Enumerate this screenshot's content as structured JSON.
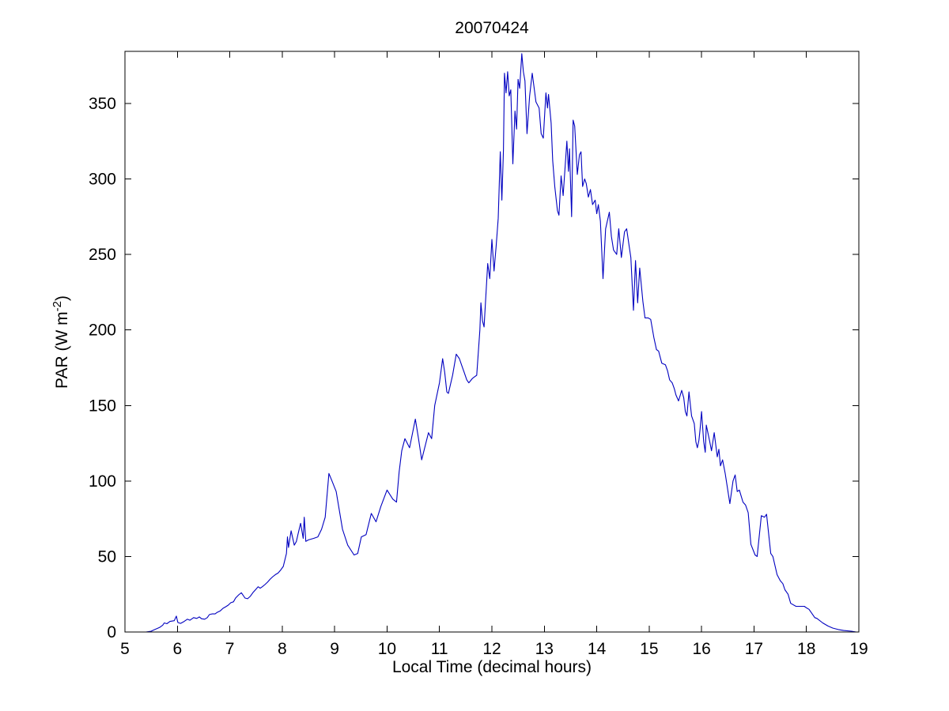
{
  "title": "20070424",
  "chart_data": {
    "type": "line",
    "title": "20070424",
    "xlabel": "Local Time (decimal hours)",
    "ylabel": "PAR (W m-2)",
    "ylabel_parts": {
      "prefix": "PAR (W m",
      "superscript": "-2",
      "suffix": ")"
    },
    "legend": "none",
    "grid": false,
    "xlim": [
      5,
      19
    ],
    "ylim": [
      0,
      384.5
    ],
    "xticks": [
      5,
      6,
      7,
      8,
      9,
      10,
      11,
      12,
      13,
      14,
      15,
      16,
      17,
      18,
      19
    ],
    "yticks": [
      0,
      50,
      100,
      150,
      200,
      250,
      300,
      350
    ],
    "line_color": "#0000C0",
    "axis_color": "#000000",
    "background": "#FFFFFF",
    "x": [
      5.4,
      5.5,
      5.56,
      5.66,
      5.72,
      5.75,
      5.8,
      5.86,
      5.94,
      5.98,
      6.01,
      6.06,
      6.13,
      6.19,
      6.24,
      6.31,
      6.37,
      6.42,
      6.46,
      6.52,
      6.57,
      6.61,
      6.66,
      6.72,
      6.76,
      6.82,
      6.87,
      6.92,
      6.97,
      7.02,
      7.07,
      7.11,
      7.17,
      7.22,
      7.29,
      7.34,
      7.39,
      7.44,
      7.49,
      7.54,
      7.58,
      7.62,
      7.67,
      7.72,
      7.77,
      7.82,
      7.87,
      7.92,
      7.97,
      8.02,
      8.08,
      8.1,
      8.12,
      8.17,
      8.23,
      8.27,
      8.3,
      8.35,
      8.4,
      8.42,
      8.45,
      8.5,
      8.6,
      8.68,
      8.75,
      8.82,
      8.89,
      8.95,
      9.03,
      9.15,
      9.25,
      9.37,
      9.44,
      9.51,
      9.6,
      9.7,
      9.79,
      9.88,
      10.0,
      10.11,
      10.18,
      10.23,
      10.28,
      10.34,
      10.43,
      10.54,
      10.6,
      10.66,
      10.79,
      10.85,
      10.91,
      11.0,
      11.06,
      11.1,
      11.14,
      11.17,
      11.25,
      11.32,
      11.38,
      11.43,
      11.47,
      11.52,
      11.56,
      11.63,
      11.67,
      11.71,
      11.77,
      11.79,
      11.82,
      11.85,
      11.92,
      11.96,
      12.0,
      12.04,
      12.08,
      12.12,
      12.16,
      12.19,
      12.22,
      12.24,
      12.27,
      12.3,
      12.33,
      12.36,
      12.4,
      12.44,
      12.47,
      12.5,
      12.53,
      12.57,
      12.6,
      12.63,
      12.67,
      12.72,
      12.77,
      12.84,
      12.9,
      12.94,
      12.98,
      13.03,
      13.06,
      13.08,
      13.13,
      13.16,
      13.2,
      13.25,
      13.28,
      13.32,
      13.36,
      13.43,
      13.46,
      13.48,
      13.52,
      13.55,
      13.58,
      13.63,
      13.67,
      13.7,
      13.73,
      13.77,
      13.8,
      13.84,
      13.88,
      13.92,
      13.97,
      14.0,
      14.03,
      14.07,
      14.12,
      14.17,
      14.24,
      14.28,
      14.32,
      14.38,
      14.42,
      14.47,
      14.53,
      14.57,
      14.62,
      14.65,
      14.7,
      14.74,
      14.78,
      14.82,
      14.88,
      14.92,
      14.98,
      15.03,
      15.09,
      15.14,
      15.18,
      15.24,
      15.31,
      15.35,
      15.39,
      15.44,
      15.48,
      15.51,
      15.56,
      15.62,
      15.66,
      15.69,
      15.72,
      15.76,
      15.81,
      15.86,
      15.89,
      15.92,
      15.95,
      15.97,
      16.0,
      16.04,
      16.07,
      16.09,
      16.15,
      16.19,
      16.24,
      16.3,
      16.33,
      16.36,
      16.4,
      16.45,
      16.54,
      16.6,
      16.64,
      16.68,
      16.72,
      16.79,
      16.84,
      16.89,
      16.94,
      17.02,
      17.06,
      17.14,
      17.2,
      17.24,
      17.32,
      17.36,
      17.44,
      17.5,
      17.55,
      17.59,
      17.65,
      17.7,
      17.8,
      17.9,
      17.96,
      18.0,
      18.05,
      18.11,
      18.16,
      18.2,
      18.31,
      18.41,
      18.5,
      18.61,
      18.71,
      18.86,
      18.95
    ],
    "y": [
      0,
      0.5,
      1.5,
      3,
      4.5,
      6,
      5.5,
      7,
      7.5,
      10.5,
      6.3,
      5.7,
      7,
      8.5,
      7.8,
      9.5,
      9,
      10,
      8.8,
      8.5,
      9.5,
      11.5,
      12,
      12,
      13,
      14,
      15.7,
      16.7,
      17.8,
      19.4,
      20,
      22.5,
      24.6,
      26,
      22.5,
      22,
      23.6,
      26,
      28,
      30,
      29,
      30,
      31.4,
      33,
      35,
      36.6,
      38,
      39,
      41,
      43.4,
      52,
      63,
      56,
      67,
      57.5,
      60,
      64.5,
      72,
      62,
      76,
      60,
      61,
      62,
      63,
      68,
      76,
      105,
      100,
      93,
      68,
      57.5,
      51,
      52,
      63,
      64.5,
      78.5,
      73,
      83,
      94,
      88,
      86,
      106,
      120,
      128,
      122,
      141,
      128,
      114,
      132,
      128,
      150,
      165,
      181,
      172,
      159,
      158,
      170,
      184,
      181,
      176,
      172,
      167,
      165,
      168,
      169,
      170,
      200,
      218,
      206,
      202,
      244,
      234,
      260,
      239,
      255,
      274,
      318,
      286,
      319,
      370,
      357,
      371,
      355,
      359,
      310,
      345,
      333,
      366,
      360,
      383,
      371,
      365,
      330,
      355,
      370,
      351,
      347,
      330,
      327,
      357,
      347,
      356,
      337,
      312,
      295,
      279,
      276,
      302,
      289,
      325,
      305,
      320,
      275,
      339,
      335,
      303,
      316,
      318,
      295,
      300,
      297,
      288,
      293,
      283,
      286,
      277,
      283,
      272,
      234,
      267,
      278,
      262,
      253,
      250,
      267,
      248,
      265,
      267,
      255,
      248,
      213,
      246,
      218,
      241,
      219,
      208,
      208,
      207,
      195,
      187,
      186,
      178,
      177,
      173,
      167,
      165,
      161,
      157,
      153,
      160,
      155,
      146,
      143,
      159,
      143,
      138,
      126,
      122,
      127,
      134,
      146,
      126,
      119,
      137,
      127,
      120,
      132,
      116,
      121,
      110,
      114,
      105,
      85,
      100,
      104,
      93,
      94,
      86,
      84,
      79,
      58,
      51,
      50,
      77,
      76,
      78,
      52,
      50,
      38,
      34,
      32,
      28,
      25,
      19,
      17,
      17,
      17,
      16,
      15,
      12,
      9.5,
      9,
      6,
      4,
      2.6,
      1.6,
      1,
      0.5,
      0
    ]
  }
}
